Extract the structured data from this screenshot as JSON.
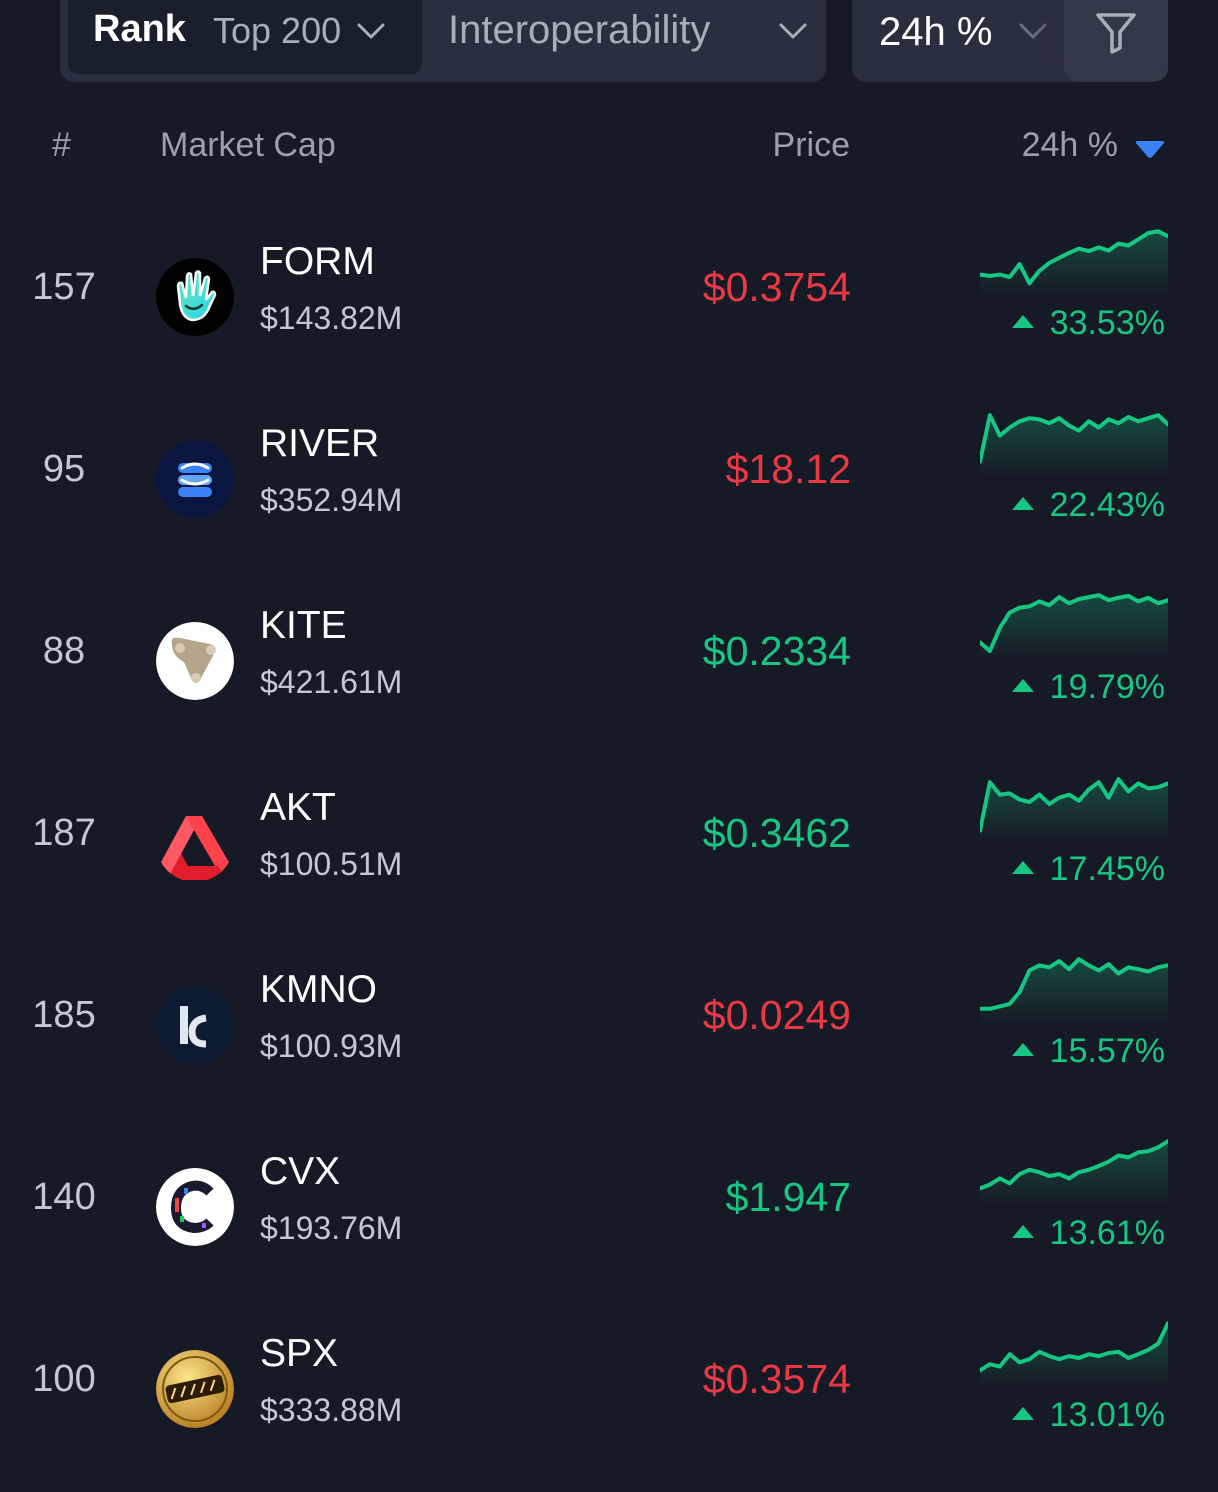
{
  "filters": {
    "rank_label": "Rank",
    "rank_value": "Top 200",
    "category_value": "Interoperability",
    "sort_value": "24h %"
  },
  "table_header": {
    "hash": "#",
    "market_cap": "Market Cap",
    "price": "Price",
    "change": "24h %"
  },
  "colors": {
    "up": "#16c784",
    "down": "#ea3943",
    "background": "#161a26",
    "accent": "#3b82f6"
  },
  "rows": [
    {
      "rank": "157",
      "symbol": "FORM",
      "market_cap": "$143.82M",
      "price": "$0.3754",
      "price_trend": "down",
      "change": "33.53%",
      "icon": "form-hand-icon",
      "spark": [
        0.72,
        0.74,
        0.72,
        0.76,
        0.55,
        0.86,
        0.66,
        0.53,
        0.45,
        0.37,
        0.3,
        0.34,
        0.28,
        0.33,
        0.22,
        0.25,
        0.15,
        0.05,
        0.02,
        0.1
      ]
    },
    {
      "rank": "95",
      "symbol": "RIVER",
      "market_cap": "$352.94M",
      "price": "$18.12",
      "price_trend": "down",
      "change": "22.43%",
      "icon": "river-wave-icon",
      "spark": [
        0.8,
        0.05,
        0.38,
        0.25,
        0.15,
        0.1,
        0.12,
        0.18,
        0.1,
        0.22,
        0.3,
        0.15,
        0.25,
        0.12,
        0.18,
        0.08,
        0.15,
        0.1,
        0.05,
        0.2
      ]
    },
    {
      "rank": "88",
      "symbol": "KITE",
      "market_cap": "$421.61M",
      "price": "$0.2334",
      "price_trend": "up",
      "change": "19.79%",
      "icon": "kite-shape-icon",
      "spark": [
        0.78,
        0.92,
        0.55,
        0.3,
        0.22,
        0.2,
        0.12,
        0.18,
        0.05,
        0.15,
        0.08,
        0.05,
        0.02,
        0.1,
        0.06,
        0.03,
        0.12,
        0.06,
        0.15,
        0.1
      ]
    },
    {
      "rank": "187",
      "symbol": "AKT",
      "market_cap": "$100.51M",
      "price": "$0.3462",
      "price_trend": "up",
      "change": "17.45%",
      "icon": "akash-triangle-icon",
      "spark": [
        0.88,
        0.1,
        0.3,
        0.28,
        0.38,
        0.42,
        0.3,
        0.45,
        0.35,
        0.3,
        0.4,
        0.22,
        0.1,
        0.35,
        0.05,
        0.25,
        0.12,
        0.2,
        0.18,
        0.12
      ]
    },
    {
      "rank": "185",
      "symbol": "KMNO",
      "market_cap": "$100.93M",
      "price": "$0.0249",
      "price_trend": "down",
      "change": "15.57%",
      "icon": "kamino-k-icon",
      "spark": [
        0.82,
        0.82,
        0.78,
        0.74,
        0.55,
        0.2,
        0.12,
        0.15,
        0.05,
        0.18,
        0.02,
        0.12,
        0.2,
        0.1,
        0.25,
        0.15,
        0.18,
        0.22,
        0.15,
        0.12
      ]
    },
    {
      "rank": "140",
      "symbol": "CVX",
      "market_cap": "$193.76M",
      "price": "$1.947",
      "price_trend": "up",
      "change": "13.61%",
      "icon": "convex-c-icon",
      "spark": [
        0.78,
        0.72,
        0.62,
        0.7,
        0.55,
        0.48,
        0.52,
        0.58,
        0.55,
        0.62,
        0.52,
        0.48,
        0.42,
        0.35,
        0.25,
        0.28,
        0.2,
        0.18,
        0.12,
        0.02
      ]
    },
    {
      "rank": "100",
      "symbol": "SPX",
      "market_cap": "$333.88M",
      "price": "$0.3574",
      "price_trend": "down",
      "change": "13.01%",
      "icon": "spx6900-icon",
      "spark": [
        0.78,
        0.68,
        0.72,
        0.52,
        0.65,
        0.6,
        0.48,
        0.55,
        0.6,
        0.55,
        0.58,
        0.52,
        0.55,
        0.5,
        0.48,
        0.58,
        0.52,
        0.45,
        0.35,
        0.02
      ]
    }
  ]
}
